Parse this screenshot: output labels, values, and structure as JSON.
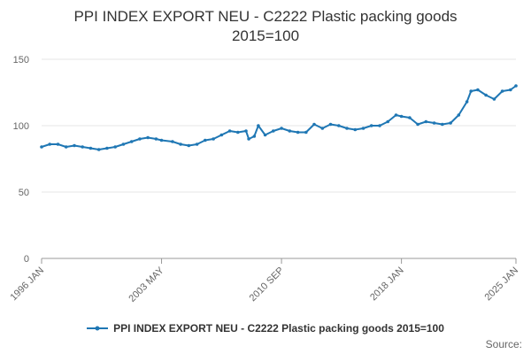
{
  "chart_data": {
    "type": "line",
    "title_line1": "PPI INDEX EXPORT NEU - C2222 Plastic packing goods",
    "title_line2": "2015=100",
    "xlabel": "",
    "ylabel": "",
    "ylim": [
      0,
      150
    ],
    "yticks": [
      0,
      50,
      100,
      150
    ],
    "xticks": [
      "1996 JAN",
      "2003 MAY",
      "2010 SEP",
      "2018 JAN",
      "2025 JAN"
    ],
    "grid": true,
    "legend_position": "bottom",
    "series": [
      {
        "name": "PPI INDEX EXPORT NEU - C2222 Plastic packing goods 2015=100",
        "color": "#1f77b4",
        "points": [
          [
            "1996-01",
            84
          ],
          [
            "1996-07",
            86
          ],
          [
            "1997-01",
            86
          ],
          [
            "1997-07",
            84
          ],
          [
            "1998-01",
            85
          ],
          [
            "1998-07",
            84
          ],
          [
            "1999-01",
            83
          ],
          [
            "1999-07",
            82
          ],
          [
            "2000-01",
            83
          ],
          [
            "2000-07",
            84
          ],
          [
            "2001-01",
            86
          ],
          [
            "2001-07",
            88
          ],
          [
            "2002-01",
            90
          ],
          [
            "2002-07",
            91
          ],
          [
            "2003-01",
            90
          ],
          [
            "2003-05",
            89
          ],
          [
            "2004-01",
            88
          ],
          [
            "2004-07",
            86
          ],
          [
            "2005-01",
            85
          ],
          [
            "2005-07",
            86
          ],
          [
            "2006-01",
            89
          ],
          [
            "2006-07",
            90
          ],
          [
            "2007-01",
            93
          ],
          [
            "2007-07",
            96
          ],
          [
            "2008-01",
            95
          ],
          [
            "2008-07",
            96
          ],
          [
            "2008-09",
            90
          ],
          [
            "2009-01",
            92
          ],
          [
            "2009-04",
            100
          ],
          [
            "2009-09",
            93
          ],
          [
            "2010-03",
            96
          ],
          [
            "2010-09",
            98
          ],
          [
            "2011-03",
            96
          ],
          [
            "2011-09",
            95
          ],
          [
            "2012-03",
            95
          ],
          [
            "2012-09",
            101
          ],
          [
            "2013-03",
            98
          ],
          [
            "2013-09",
            101
          ],
          [
            "2014-03",
            100
          ],
          [
            "2014-09",
            98
          ],
          [
            "2015-03",
            97
          ],
          [
            "2015-09",
            98
          ],
          [
            "2016-03",
            100
          ],
          [
            "2016-09",
            100
          ],
          [
            "2017-03",
            103
          ],
          [
            "2017-09",
            108
          ],
          [
            "2018-01",
            107
          ],
          [
            "2018-07",
            106
          ],
          [
            "2019-01",
            101
          ],
          [
            "2019-07",
            103
          ],
          [
            "2020-01",
            102
          ],
          [
            "2020-07",
            101
          ],
          [
            "2021-01",
            102
          ],
          [
            "2021-07",
            108
          ],
          [
            "2022-01",
            118
          ],
          [
            "2022-04",
            126
          ],
          [
            "2022-09",
            127
          ],
          [
            "2023-03",
            123
          ],
          [
            "2023-09",
            120
          ],
          [
            "2024-03",
            126
          ],
          [
            "2024-09",
            127
          ],
          [
            "2025-01",
            130
          ]
        ]
      }
    ]
  },
  "footer": {
    "source_label": "Source:"
  }
}
